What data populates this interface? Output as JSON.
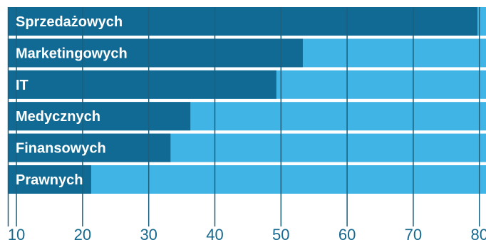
{
  "chart_data": {
    "type": "bar",
    "orientation": "horizontal",
    "categories": [
      "Sprzedażowych",
      "Marketingowych",
      "IT",
      "Medycznych",
      "Finansowych",
      "Prawnych"
    ],
    "values": [
      79.7,
      53.3,
      49.3,
      36.3,
      33.3,
      21.3
    ],
    "title": "",
    "xlabel": "",
    "ylabel": "",
    "xlim": [
      8.7,
      81
    ],
    "xticks": [
      10,
      20,
      30,
      40,
      50,
      60,
      70,
      80
    ],
    "grid": true,
    "colors": {
      "bar": "#106a93",
      "track": "#40b4e5",
      "gridline": "#1c5f7e",
      "tick_text": "#15698f"
    }
  }
}
